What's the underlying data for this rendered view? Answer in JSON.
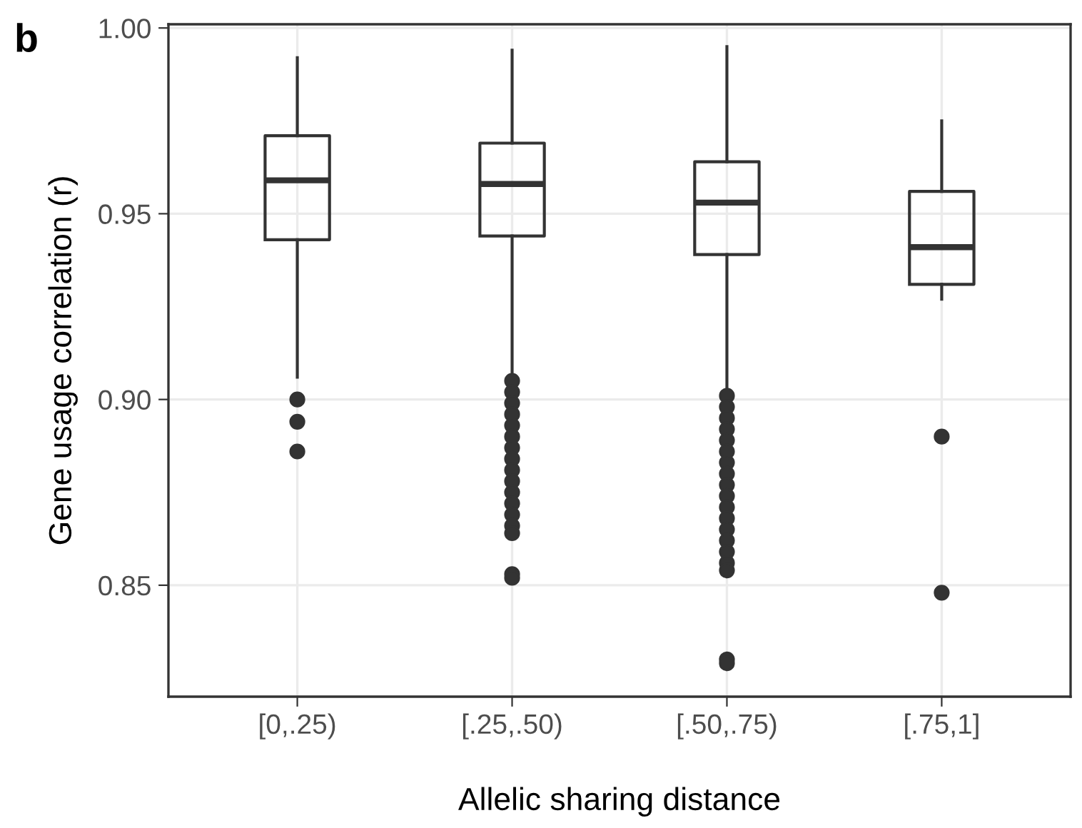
{
  "chart_data": {
    "type": "box",
    "xlabel": "Allelic sharing distance",
    "ylabel": "Gene usage correlation (r)",
    "annotations": [
      "b"
    ],
    "categories": [
      "[0,.25)",
      "[.25,.50)",
      "[.50,.75)",
      "[.75,1]"
    ],
    "boxes": [
      {
        "low": 0.906,
        "q1": 0.943,
        "median": 0.959,
        "q3": 0.971,
        "high": 0.992,
        "outliers": [
          0.9,
          0.894,
          0.886
        ]
      },
      {
        "low": 0.907,
        "q1": 0.944,
        "median": 0.958,
        "q3": 0.969,
        "high": 0.994,
        "outliers": [
          0.905,
          0.902,
          0.899,
          0.896,
          0.893,
          0.89,
          0.887,
          0.884,
          0.881,
          0.878,
          0.875,
          0.872,
          0.869,
          0.866,
          0.864,
          0.853,
          0.852
        ]
      },
      {
        "low": 0.902,
        "q1": 0.939,
        "median": 0.953,
        "q3": 0.964,
        "high": 0.995,
        "outliers": [
          0.901,
          0.898,
          0.895,
          0.892,
          0.889,
          0.886,
          0.883,
          0.88,
          0.877,
          0.874,
          0.871,
          0.868,
          0.865,
          0.862,
          0.859,
          0.856,
          0.854,
          0.83,
          0.829
        ]
      },
      {
        "low": 0.927,
        "q1": 0.931,
        "median": 0.941,
        "q3": 0.956,
        "high": 0.975,
        "outliers": [
          0.89,
          0.848
        ]
      }
    ],
    "color": "#333333",
    "ylim": [
      0.82,
      1.001
    ],
    "yticks": [
      {
        "value": 0.85,
        "label": "0.85"
      },
      {
        "value": 0.9,
        "label": "0.90"
      },
      {
        "value": 0.95,
        "label": "0.95"
      },
      {
        "value": 1.0,
        "label": "1.00"
      }
    ],
    "grid": true
  }
}
